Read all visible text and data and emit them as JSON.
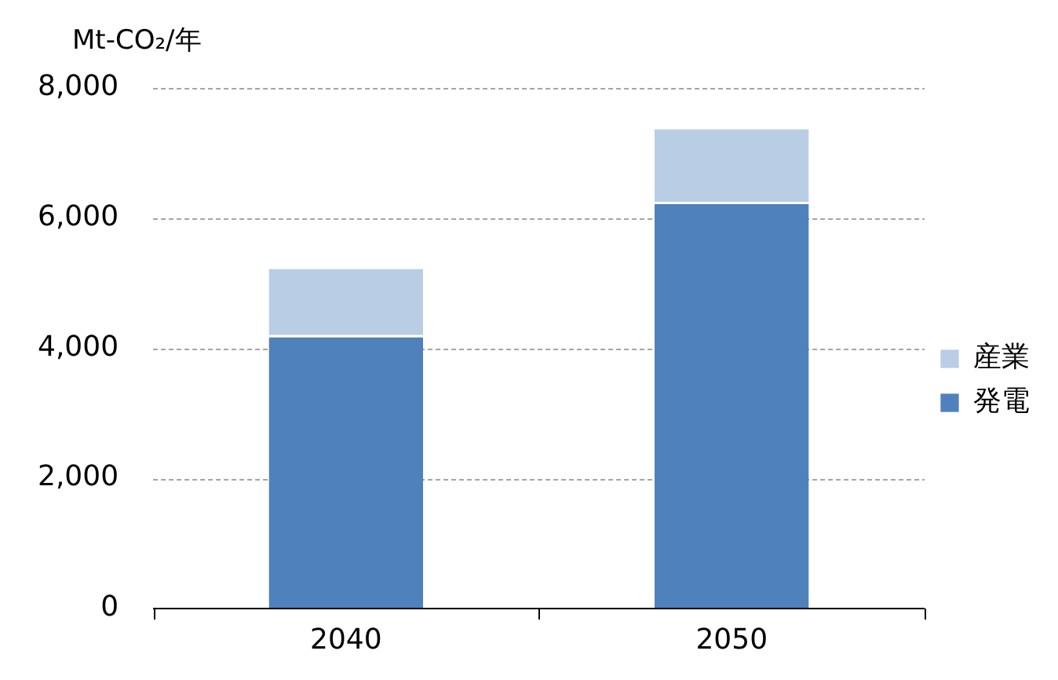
{
  "chart_data": {
    "type": "bar",
    "stacked": true,
    "ylabel": "Mt-CO₂/年",
    "categories": [
      "2040",
      "2050"
    ],
    "series": [
      {
        "name": "発電",
        "color": "#4f81bd",
        "values": [
          4200,
          6250
        ]
      },
      {
        "name": "産業",
        "color": "#b9cde5",
        "values": [
          1050,
          1150
        ]
      }
    ],
    "ylim": [
      0,
      8000
    ],
    "yticks": [
      {
        "value": 0,
        "label": "0"
      },
      {
        "value": 2000,
        "label": "2,000"
      },
      {
        "value": 4000,
        "label": "4,000"
      },
      {
        "value": 6000,
        "label": "6,000"
      },
      {
        "value": 8000,
        "label": "8,000"
      }
    ],
    "grid": "y",
    "legend": "right"
  }
}
